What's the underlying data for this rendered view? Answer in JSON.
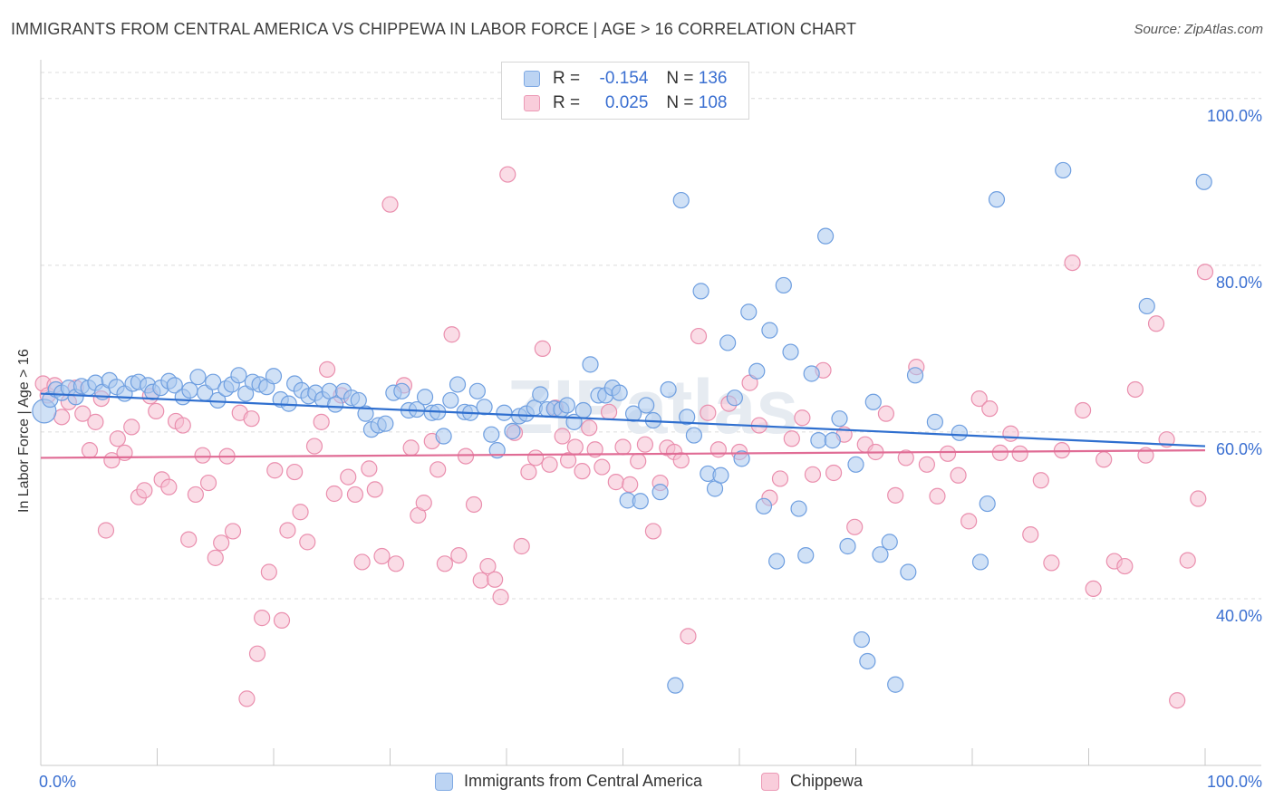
{
  "title": "IMMIGRANTS FROM CENTRAL AMERICA VS CHIPPEWA IN LABOR FORCE | AGE > 16 CORRELATION CHART",
  "source": "Source: ZipAtlas.com",
  "watermark": "ZIPatlas",
  "legend_top": {
    "rows": [
      {
        "r_label": "R =",
        "r_value": "-0.154",
        "n_label": "N =",
        "n_value": "136"
      },
      {
        "r_label": "R =",
        "r_value": "0.025",
        "n_label": "N =",
        "n_value": "108"
      }
    ]
  },
  "colors": {
    "blue_fill": "#aac8ef",
    "blue_stroke": "#6f9fe0",
    "blue_line": "#2f6fcf",
    "pink_fill": "#f6c0d1",
    "pink_stroke": "#ea8fae",
    "pink_line": "#e06c95",
    "tick_label": "#3a6fd1",
    "grid": "#dcdcdc"
  },
  "chart_data": {
    "type": "scatter",
    "title": "IMMIGRANTS FROM CENTRAL AMERICA VS CHIPPEWA IN LABOR FORCE | AGE > 16 CORRELATION CHART",
    "xlabel": "",
    "ylabel": "In Labor Force | Age > 16",
    "xlim": [
      0,
      100
    ],
    "ylim": [
      20,
      104
    ],
    "x_tick_labels": [
      "0.0%",
      "100.0%"
    ],
    "y_ticks": [
      40,
      60,
      80,
      100
    ],
    "y_tick_labels": [
      "40.0%",
      "60.0%",
      "80.0%",
      "100.0%"
    ],
    "grid": "horizontal dashed",
    "legend_placement": "top-center and bottom",
    "series": [
      {
        "name": "Immigrants from Central America",
        "color": "#aac8ef",
        "trend": {
          "x": [
            0,
            100
          ],
          "y": [
            64.6,
            58.3
          ]
        },
        "points": [
          [
            0.3,
            62.5
          ],
          [
            0.8,
            63.9
          ],
          [
            1.3,
            65.1
          ],
          [
            1.8,
            64.7
          ],
          [
            2.4,
            65.3
          ],
          [
            3.0,
            64.2
          ],
          [
            3.5,
            65.5
          ],
          [
            4.1,
            65.3
          ],
          [
            4.7,
            65.9
          ],
          [
            5.3,
            64.8
          ],
          [
            5.9,
            66.2
          ],
          [
            6.5,
            65.4
          ],
          [
            7.2,
            64.6
          ],
          [
            7.9,
            65.8
          ],
          [
            8.4,
            66.0
          ],
          [
            9.2,
            65.6
          ],
          [
            9.6,
            64.8
          ],
          [
            10.3,
            65.3
          ],
          [
            11.0,
            66.1
          ],
          [
            11.5,
            65.6
          ],
          [
            12.2,
            64.2
          ],
          [
            12.8,
            65.0
          ],
          [
            13.5,
            66.6
          ],
          [
            14.1,
            64.7
          ],
          [
            14.8,
            66.0
          ],
          [
            15.2,
            63.8
          ],
          [
            15.9,
            65.2
          ],
          [
            16.4,
            65.7
          ],
          [
            17.0,
            66.8
          ],
          [
            17.6,
            64.6
          ],
          [
            18.2,
            66.0
          ],
          [
            18.8,
            65.7
          ],
          [
            19.4,
            65.4
          ],
          [
            20.0,
            66.7
          ],
          [
            20.6,
            63.9
          ],
          [
            21.3,
            63.4
          ],
          [
            21.8,
            65.8
          ],
          [
            22.4,
            65.0
          ],
          [
            23.0,
            64.3
          ],
          [
            23.6,
            64.7
          ],
          [
            24.2,
            63.9
          ],
          [
            24.8,
            64.9
          ],
          [
            25.3,
            63.3
          ],
          [
            26.0,
            64.9
          ],
          [
            26.7,
            64.1
          ],
          [
            27.3,
            63.8
          ],
          [
            27.9,
            62.2
          ],
          [
            28.4,
            60.3
          ],
          [
            29.0,
            60.8
          ],
          [
            29.6,
            61.0
          ],
          [
            30.3,
            64.7
          ],
          [
            31.0,
            64.9
          ],
          [
            31.6,
            62.6
          ],
          [
            32.3,
            62.7
          ],
          [
            33.0,
            64.2
          ],
          [
            33.6,
            62.3
          ],
          [
            34.1,
            62.4
          ],
          [
            34.6,
            59.5
          ],
          [
            35.2,
            63.8
          ],
          [
            35.8,
            65.7
          ],
          [
            36.4,
            62.4
          ],
          [
            36.9,
            62.3
          ],
          [
            37.5,
            64.9
          ],
          [
            38.1,
            63.0
          ],
          [
            38.7,
            59.7
          ],
          [
            39.2,
            57.8
          ],
          [
            39.8,
            62.3
          ],
          [
            40.5,
            60.1
          ],
          [
            41.1,
            61.9
          ],
          [
            41.7,
            62.2
          ],
          [
            42.4,
            62.9
          ],
          [
            42.9,
            64.5
          ],
          [
            43.5,
            62.7
          ],
          [
            44.1,
            62.8
          ],
          [
            44.7,
            62.7
          ],
          [
            45.2,
            63.2
          ],
          [
            45.8,
            61.2
          ],
          [
            46.6,
            62.6
          ],
          [
            47.2,
            68.1
          ],
          [
            47.9,
            64.4
          ],
          [
            48.5,
            64.4
          ],
          [
            49.1,
            65.3
          ],
          [
            49.7,
            64.7
          ],
          [
            50.4,
            51.8
          ],
          [
            50.9,
            62.2
          ],
          [
            51.5,
            51.7
          ],
          [
            52.0,
            63.2
          ],
          [
            52.6,
            61.4
          ],
          [
            53.2,
            52.8
          ],
          [
            53.9,
            65.1
          ],
          [
            54.5,
            29.6
          ],
          [
            55.0,
            87.8
          ],
          [
            55.5,
            61.8
          ],
          [
            56.1,
            59.6
          ],
          [
            56.7,
            76.9
          ],
          [
            57.3,
            55.0
          ],
          [
            57.9,
            53.2
          ],
          [
            58.4,
            54.8
          ],
          [
            59.0,
            70.7
          ],
          [
            59.6,
            64.1
          ],
          [
            60.2,
            56.8
          ],
          [
            60.8,
            74.4
          ],
          [
            61.5,
            67.3
          ],
          [
            62.1,
            51.1
          ],
          [
            62.6,
            72.2
          ],
          [
            63.2,
            44.5
          ],
          [
            63.8,
            77.6
          ],
          [
            64.4,
            69.6
          ],
          [
            65.1,
            50.8
          ],
          [
            65.7,
            45.2
          ],
          [
            66.2,
            67.0
          ],
          [
            66.8,
            59.0
          ],
          [
            67.4,
            83.5
          ],
          [
            68.0,
            59.0
          ],
          [
            68.6,
            61.6
          ],
          [
            69.3,
            46.3
          ],
          [
            70.0,
            56.1
          ],
          [
            70.5,
            35.1
          ],
          [
            71.0,
            32.5
          ],
          [
            71.5,
            63.6
          ],
          [
            72.1,
            45.3
          ],
          [
            72.9,
            46.8
          ],
          [
            73.4,
            29.7
          ],
          [
            74.5,
            43.2
          ],
          [
            75.1,
            66.8
          ],
          [
            76.8,
            61.2
          ],
          [
            78.9,
            59.9
          ],
          [
            80.7,
            44.4
          ],
          [
            81.3,
            51.4
          ],
          [
            82.1,
            87.9
          ],
          [
            87.8,
            91.4
          ],
          [
            95.0,
            75.1
          ],
          [
            99.9,
            90.0
          ]
        ]
      },
      {
        "name": "Chippewa",
        "color": "#f6c0d1",
        "trend": {
          "x": [
            0,
            100
          ],
          "y": [
            56.9,
            57.8
          ]
        },
        "points": [
          [
            0.2,
            65.8
          ],
          [
            0.6,
            64.4
          ],
          [
            1.2,
            65.6
          ],
          [
            1.8,
            61.8
          ],
          [
            2.4,
            63.6
          ],
          [
            3.0,
            65.3
          ],
          [
            3.6,
            62.2
          ],
          [
            4.2,
            57.8
          ],
          [
            4.7,
            61.2
          ],
          [
            5.2,
            64.0
          ],
          [
            5.6,
            48.2
          ],
          [
            6.1,
            56.6
          ],
          [
            6.6,
            59.2
          ],
          [
            7.2,
            57.5
          ],
          [
            7.8,
            60.6
          ],
          [
            8.4,
            52.2
          ],
          [
            8.9,
            53.0
          ],
          [
            9.4,
            64.3
          ],
          [
            9.9,
            62.5
          ],
          [
            10.4,
            54.3
          ],
          [
            11.0,
            53.4
          ],
          [
            11.6,
            61.3
          ],
          [
            12.2,
            60.8
          ],
          [
            12.7,
            47.1
          ],
          [
            13.3,
            52.5
          ],
          [
            13.9,
            57.2
          ],
          [
            14.4,
            53.9
          ],
          [
            15.0,
            44.9
          ],
          [
            15.5,
            46.7
          ],
          [
            16.0,
            57.1
          ],
          [
            16.5,
            48.1
          ],
          [
            17.1,
            62.3
          ],
          [
            17.7,
            28.0
          ],
          [
            18.1,
            61.6
          ],
          [
            18.6,
            33.4
          ],
          [
            19.0,
            37.7
          ],
          [
            19.6,
            43.2
          ],
          [
            20.1,
            55.4
          ],
          [
            20.7,
            37.4
          ],
          [
            21.2,
            48.2
          ],
          [
            21.8,
            55.2
          ],
          [
            22.3,
            50.4
          ],
          [
            22.9,
            46.8
          ],
          [
            23.5,
            58.3
          ],
          [
            24.1,
            61.2
          ],
          [
            24.6,
            67.5
          ],
          [
            25.2,
            52.6
          ],
          [
            25.8,
            64.4
          ],
          [
            26.4,
            54.6
          ],
          [
            27.0,
            52.5
          ],
          [
            27.6,
            44.4
          ],
          [
            28.2,
            55.6
          ],
          [
            28.7,
            53.1
          ],
          [
            29.3,
            45.1
          ],
          [
            30.0,
            87.3
          ],
          [
            30.5,
            44.2
          ],
          [
            31.2,
            65.6
          ],
          [
            31.8,
            58.1
          ],
          [
            32.4,
            50.0
          ],
          [
            32.9,
            51.5
          ],
          [
            33.6,
            58.9
          ],
          [
            34.1,
            55.5
          ],
          [
            34.7,
            44.2
          ],
          [
            35.3,
            71.7
          ],
          [
            35.9,
            45.2
          ],
          [
            36.5,
            57.1
          ],
          [
            37.2,
            51.3
          ],
          [
            37.8,
            42.2
          ],
          [
            38.4,
            43.9
          ],
          [
            39.0,
            42.3
          ],
          [
            39.5,
            40.2
          ],
          [
            40.1,
            90.9
          ],
          [
            40.7,
            59.9
          ],
          [
            41.3,
            46.3
          ],
          [
            41.9,
            55.2
          ],
          [
            42.5,
            56.9
          ],
          [
            43.1,
            70.0
          ],
          [
            43.7,
            56.1
          ],
          [
            44.2,
            62.9
          ],
          [
            44.8,
            59.5
          ],
          [
            45.3,
            56.6
          ],
          [
            45.9,
            58.2
          ],
          [
            46.5,
            55.3
          ],
          [
            47.1,
            60.5
          ],
          [
            47.6,
            57.9
          ],
          [
            48.2,
            55.8
          ],
          [
            48.8,
            62.4
          ],
          [
            49.4,
            54.0
          ],
          [
            50.0,
            58.2
          ],
          [
            50.6,
            53.7
          ],
          [
            51.3,
            56.5
          ],
          [
            51.9,
            58.5
          ],
          [
            52.6,
            48.1
          ],
          [
            53.2,
            53.9
          ],
          [
            53.8,
            58.1
          ],
          [
            54.4,
            57.6
          ],
          [
            55.0,
            56.6
          ],
          [
            55.6,
            35.5
          ],
          [
            56.5,
            71.5
          ],
          [
            57.3,
            62.3
          ],
          [
            58.2,
            57.9
          ],
          [
            59.1,
            63.4
          ],
          [
            60.0,
            57.6
          ],
          [
            60.9,
            65.9
          ],
          [
            61.7,
            60.8
          ],
          [
            62.6,
            52.1
          ],
          [
            63.5,
            54.4
          ],
          [
            64.5,
            59.2
          ],
          [
            65.4,
            61.7
          ],
          [
            66.3,
            54.9
          ],
          [
            67.2,
            67.4
          ],
          [
            68.1,
            55.1
          ],
          [
            69.0,
            59.7
          ],
          [
            69.9,
            48.6
          ],
          [
            70.8,
            58.5
          ],
          [
            71.7,
            57.6
          ],
          [
            72.6,
            62.2
          ],
          [
            73.4,
            52.4
          ],
          [
            74.3,
            56.9
          ],
          [
            75.2,
            67.8
          ],
          [
            76.1,
            56.1
          ],
          [
            77.0,
            52.3
          ],
          [
            77.9,
            57.4
          ],
          [
            78.8,
            54.8
          ],
          [
            79.7,
            49.3
          ],
          [
            80.6,
            64.0
          ],
          [
            81.5,
            62.8
          ],
          [
            82.4,
            57.5
          ],
          [
            83.3,
            59.8
          ],
          [
            84.1,
            57.4
          ],
          [
            85.0,
            47.7
          ],
          [
            85.9,
            54.2
          ],
          [
            86.8,
            44.3
          ],
          [
            87.7,
            57.8
          ],
          [
            88.6,
            80.3
          ],
          [
            89.5,
            62.6
          ],
          [
            90.4,
            41.2
          ],
          [
            91.3,
            56.7
          ],
          [
            92.2,
            44.5
          ],
          [
            93.1,
            43.9
          ],
          [
            94.0,
            65.1
          ],
          [
            94.9,
            57.2
          ],
          [
            95.8,
            73.0
          ],
          [
            96.7,
            59.1
          ],
          [
            97.6,
            27.8
          ],
          [
            98.5,
            44.6
          ],
          [
            99.4,
            52.0
          ],
          [
            100.0,
            79.2
          ]
        ]
      }
    ]
  },
  "bottom_legend": [
    {
      "label": "Immigrants from Central America"
    },
    {
      "label": "Chippewa"
    }
  ]
}
